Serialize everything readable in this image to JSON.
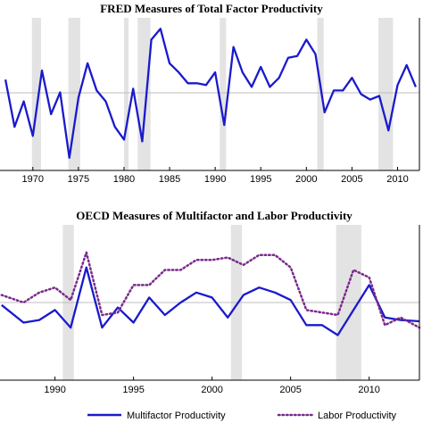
{
  "chart_data": [
    {
      "type": "line",
      "title": "FRED Measures of Total Factor Productivity",
      "xlabel": "",
      "ylabel": "",
      "xlim": [
        1966.4,
        1912.0
      ],
      "x_ticks": [
        "1970",
        "1975",
        "1980",
        "1985",
        "1990",
        "1995",
        "2000",
        "2005",
        "2010"
      ],
      "recessions": [
        [
          1969.9,
          1970.9
        ],
        [
          1973.9,
          1975.2
        ],
        [
          1980.0,
          1980.5
        ],
        [
          1981.5,
          1982.9
        ],
        [
          1990.5,
          1991.2
        ],
        [
          2001.2,
          2001.9
        ],
        [
          2007.9,
          2009.5
        ]
      ],
      "zero_line": true,
      "series": [
        {
          "color": "#1a1acc",
          "style": "solid",
          "x": [
            1967,
            1968,
            1969,
            1970,
            1971,
            1972,
            1973,
            1974,
            1975,
            1976,
            1977,
            1978,
            1979,
            1980,
            1981,
            1982,
            1983,
            1984,
            1985,
            1986,
            1987,
            1988,
            1989,
            1990,
            1991,
            1992,
            1993,
            1994,
            1995,
            1996,
            1997,
            1998,
            1999,
            2000,
            2001,
            2002,
            2003,
            2004,
            2005,
            2006,
            2007,
            2008,
            2009,
            2010,
            2011,
            2012
          ],
          "y": [
            1.8,
            -0.8,
            0.6,
            -1.3,
            2.3,
            -0.1,
            1.1,
            -2.5,
            0.8,
            2.7,
            1.2,
            0.6,
            -0.8,
            -1.5,
            1.3,
            -1.6,
            4.0,
            4.6,
            2.7,
            2.2,
            1.6,
            1.6,
            1.5,
            2.2,
            -0.7,
            3.6,
            2.2,
            1.4,
            2.5,
            1.4,
            1.9,
            3.0,
            3.1,
            4.0,
            3.2,
            0.0,
            1.2,
            1.2,
            1.9,
            1.0,
            0.7,
            0.9,
            -1.0,
            1.5,
            2.6,
            1.4
          ]
        }
      ]
    },
    {
      "type": "line",
      "title": "OECD Measures of Multifactor and Labor Productivity",
      "xlabel": "",
      "ylabel": "",
      "xlim": [
        1986.5,
        2013.2
      ],
      "x_ticks": [
        "1990",
        "1995",
        "2000",
        "2005",
        "2010"
      ],
      "recessions": [
        [
          1990.5,
          1991.2
        ],
        [
          2001.2,
          2001.9
        ],
        [
          2007.9,
          2009.5
        ]
      ],
      "zero_line": true,
      "series": [
        {
          "name": "Multifactor Productivity",
          "color": "#1a1acc",
          "style": "solid",
          "x": [
            1986.6,
            1988,
            1989,
            1990,
            1991,
            1992,
            1993,
            1994,
            1995,
            1996,
            1997,
            1998,
            1999,
            2000,
            2001,
            2002,
            2003,
            2004,
            2005,
            2006,
            2007,
            2008,
            2009,
            2010,
            2011,
            2012,
            2013.2
          ],
          "y": [
            1.0,
            0.3,
            0.4,
            0.8,
            0.1,
            2.5,
            0.1,
            0.9,
            0.3,
            1.3,
            0.6,
            1.1,
            1.5,
            1.3,
            0.5,
            1.4,
            1.7,
            1.5,
            1.2,
            0.2,
            0.2,
            -0.2,
            0.8,
            1.8,
            0.5,
            0.4,
            0.35
          ]
        },
        {
          "name": "Labor Productivity",
          "color": "#7a2a8c",
          "style": "dotted",
          "x": [
            1986.6,
            1988,
            1989,
            1990,
            1991,
            1992,
            1993,
            1994,
            1995,
            1996,
            1997,
            1998,
            1999,
            2000,
            2001,
            2002,
            2003,
            2004,
            2005,
            2006,
            2007,
            2008,
            2009,
            2010,
            2011,
            2012,
            2013.2
          ],
          "y": [
            1.4,
            1.1,
            1.5,
            1.7,
            1.2,
            3.1,
            0.6,
            0.7,
            1.8,
            1.8,
            2.4,
            2.4,
            2.8,
            2.8,
            2.9,
            2.6,
            3.0,
            3.0,
            2.5,
            0.8,
            0.7,
            0.6,
            2.4,
            2.1,
            0.2,
            0.5,
            0.1
          ]
        }
      ]
    }
  ]
}
